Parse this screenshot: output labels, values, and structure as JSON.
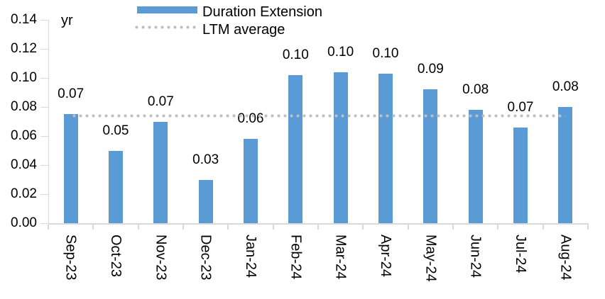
{
  "chart": {
    "unit_label": "yr",
    "colors": {
      "bar": "#5B9BD5",
      "dotted_line": "#BFBFBF",
      "axis": "#D9D9D9",
      "text": "#000000",
      "background": "#FFFFFF"
    }
  },
  "legend": {
    "position": "top",
    "items": [
      {
        "label": "Duration Extension",
        "swatch": "bar-swatch",
        "color": "#5B9BD5"
      },
      {
        "label": "LTM average",
        "swatch": "dotted-line-swatch",
        "color": "#BFBFBF"
      }
    ]
  },
  "chart_data": {
    "type": "bar",
    "title": "",
    "xlabel": "",
    "ylabel": "yr",
    "categories": [
      "Sep-23",
      "Oct-23",
      "Nov-23",
      "Dec-23",
      "Jan-24",
      "Feb-24",
      "Mar-24",
      "Apr-24",
      "May-24",
      "Jun-24",
      "Jul-24",
      "Aug-24"
    ],
    "series": [
      {
        "name": "Duration Extension",
        "type": "bar",
        "color": "#5B9BD5",
        "values": [
          0.075,
          0.05,
          0.07,
          0.03,
          0.058,
          0.102,
          0.104,
          0.103,
          0.092,
          0.078,
          0.066,
          0.08
        ],
        "data_labels": [
          "0.07",
          "0.05",
          "0.07",
          "0.03",
          "0.06",
          "0.10",
          "0.10",
          "0.10",
          "0.09",
          "0.08",
          "0.07",
          "0.08"
        ]
      },
      {
        "name": "LTM average",
        "type": "line",
        "line_style": "dotted",
        "color": "#BFBFBF",
        "value": 0.074
      }
    ],
    "ylim": [
      0,
      0.14
    ],
    "yticks": [
      0.0,
      0.02,
      0.04,
      0.06,
      0.08,
      0.1,
      0.12,
      0.14
    ],
    "ytick_labels": [
      "0.00",
      "0.02",
      "0.04",
      "0.06",
      "0.08",
      "0.10",
      "0.12",
      "0.14"
    ],
    "grid": false,
    "legend_position": "top"
  }
}
